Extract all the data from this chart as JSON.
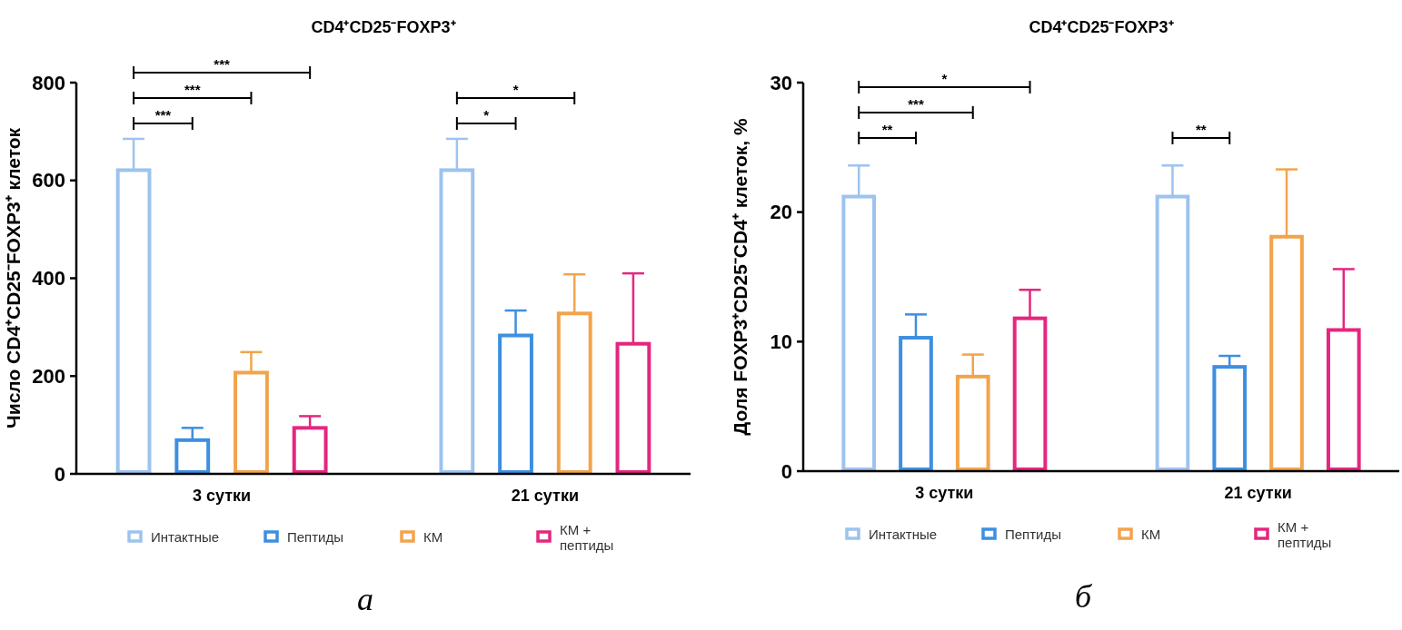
{
  "chart_data": [
    {
      "type": "bar",
      "title": "CD4⁺CD25⁻FOXP3⁺",
      "ylabel": "Число CD4⁺CD25⁻FOXP3⁺ клеток",
      "categories": [
        "3 сутки",
        "21 сутки"
      ],
      "series": [
        {
          "name": "Интактные",
          "color": "#9dc3ee",
          "values": [
            621,
            621
          ],
          "errors": [
            [
              621,
              685
            ],
            [
              621,
              685
            ]
          ]
        },
        {
          "name": "Пептиды",
          "color": "#3d8fe0",
          "values": [
            69,
            283
          ],
          "errors": [
            [
              69,
              94
            ],
            [
              283,
              334
            ]
          ]
        },
        {
          "name": "КМ",
          "color": "#f2a44c",
          "values": [
            207,
            328
          ],
          "errors": [
            [
              207,
              249
            ],
            [
              328,
              408
            ]
          ]
        },
        {
          "name": "КМ + пептиды",
          "color": "#e5267f",
          "values": [
            94,
            266
          ],
          "errors": [
            [
              94,
              118
            ],
            [
              266,
              410
            ]
          ]
        }
      ],
      "ylim": [
        0,
        800
      ],
      "yticks": [
        0,
        200,
        400,
        600,
        800
      ],
      "legend": "bottom",
      "annotations": [
        "***",
        "***",
        "***",
        "*",
        "*",
        "а"
      ]
    },
    {
      "type": "bar",
      "title": "CD4⁺CD25⁻FOXP3⁺",
      "ylabel": "Доля FOXP3⁺CD25⁻CD4⁺ клеток, %",
      "categories": [
        "3 сутки",
        "21 сутки"
      ],
      "series": [
        {
          "name": "Интактные",
          "color": "#9dc3ee",
          "values": [
            21.2,
            21.2
          ],
          "errors": [
            [
              21.2,
              23.6
            ],
            [
              21.2,
              23.6
            ]
          ]
        },
        {
          "name": "Пептиды",
          "color": "#3d8fe0",
          "values": [
            10.3,
            8.05
          ],
          "errors": [
            [
              10.3,
              12.1
            ],
            [
              8.05,
              8.9
            ]
          ]
        },
        {
          "name": "КМ",
          "color": "#f2a44c",
          "values": [
            7.3,
            18.1
          ],
          "errors": [
            [
              7.3,
              9.0
            ],
            [
              18.1,
              23.3
            ]
          ]
        },
        {
          "name": "КМ + пептиды",
          "color": "#e5267f",
          "values": [
            11.8,
            10.9
          ],
          "errors": [
            [
              11.8,
              14.0
            ],
            [
              10.9,
              15.6
            ]
          ]
        }
      ],
      "ylim": [
        0,
        30
      ],
      "yticks": [
        0,
        10,
        20,
        30
      ],
      "legend": "bottom",
      "annotations": [
        "**",
        "***",
        "*",
        "**",
        "б"
      ]
    }
  ]
}
